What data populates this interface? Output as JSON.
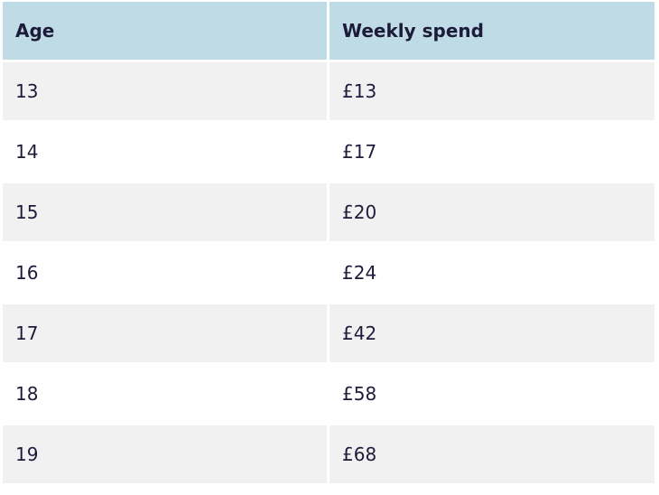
{
  "table": {
    "headers": [
      "Age",
      "Weekly spend"
    ],
    "rows": [
      [
        "13",
        "£13"
      ],
      [
        "14",
        "£17"
      ],
      [
        "15",
        "£20"
      ],
      [
        "16",
        "£24"
      ],
      [
        "17",
        "£42"
      ],
      [
        "18",
        "£58"
      ],
      [
        "19",
        "£68"
      ]
    ]
  }
}
